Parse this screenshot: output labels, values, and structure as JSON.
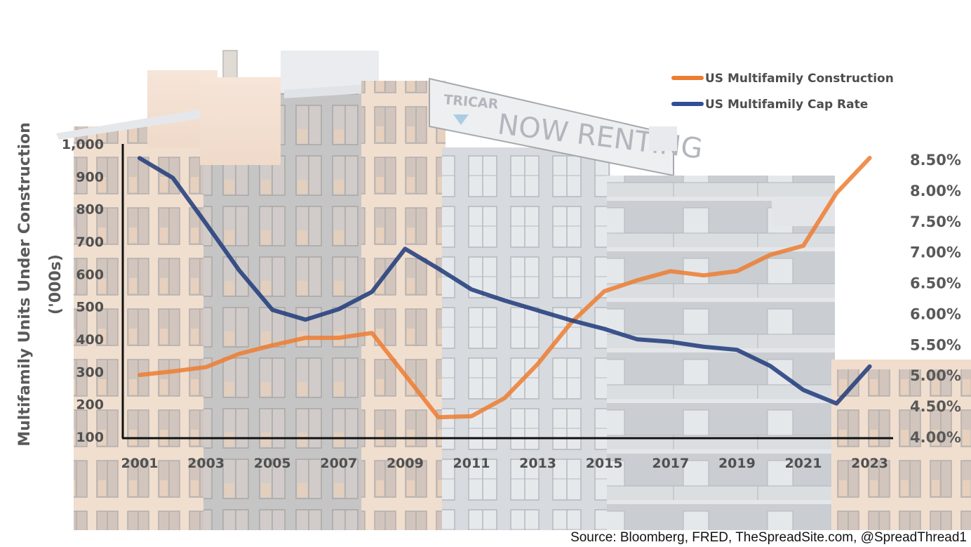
{
  "chart_data": {
    "type": "line",
    "title": "",
    "x": [
      2001,
      2002,
      2003,
      2004,
      2005,
      2006,
      2007,
      2008,
      2009,
      2010,
      2011,
      2012,
      2013,
      2014,
      2015,
      2016,
      2017,
      2018,
      2019,
      2020,
      2021,
      2022,
      2023
    ],
    "x_tick_labels": [
      "2001",
      "2003",
      "2005",
      "2007",
      "2009",
      "2011",
      "2013",
      "2015",
      "2017",
      "2019",
      "2021",
      "2023"
    ],
    "ylabel": "Multifamily Units Under Construction ('000s)",
    "ylabel_lines": [
      "Multifamily Units Under Construction",
      "('000s)"
    ],
    "ylim": [
      100,
      1000
    ],
    "y_tick_labels": [
      "1,000",
      "900",
      "800",
      "700",
      "600",
      "500",
      "400",
      "300",
      "200",
      "100"
    ],
    "y2lim": [
      4.0,
      8.5
    ],
    "y2_tick_labels": [
      "8.50%",
      "8.00%",
      "7.50%",
      "7.00%",
      "6.50%",
      "6.00%",
      "5.50%",
      "5.00%",
      "4.50%",
      "4.00%"
    ],
    "grid": false,
    "legend_position": "top-right",
    "series": [
      {
        "name": "US Multifamily Construction",
        "axis": "left",
        "color": "#ED7D31",
        "values": [
          290,
          301,
          314,
          355,
          381,
          404,
          404,
          419,
          290,
          160,
          163,
          219,
          324,
          450,
          547,
          581,
          609,
          596,
          609,
          659,
          687,
          849,
          957
        ]
      },
      {
        "name": "US Multifamily Cap Rate",
        "axis": "right",
        "color": "#1F3A7A",
        "values": [
          8.52,
          8.2,
          7.46,
          6.7,
          6.06,
          5.9,
          6.07,
          6.35,
          7.05,
          6.73,
          6.39,
          6.21,
          6.05,
          5.89,
          5.75,
          5.58,
          5.54,
          5.46,
          5.41,
          5.15,
          4.76,
          4.54,
          5.14
        ]
      }
    ]
  },
  "legend": {
    "items": [
      {
        "label": "US Multifamily Construction",
        "color": "#ED7D31"
      },
      {
        "label": "US Multifamily Cap Rate",
        "color": "#2F4F96"
      }
    ]
  },
  "background": {
    "sign_brand": "TRICAR",
    "sign_text": "NOW RENTING"
  },
  "source": "Source: Bloomberg, FRED, TheSpreadSite.com, @SpreadThread1"
}
